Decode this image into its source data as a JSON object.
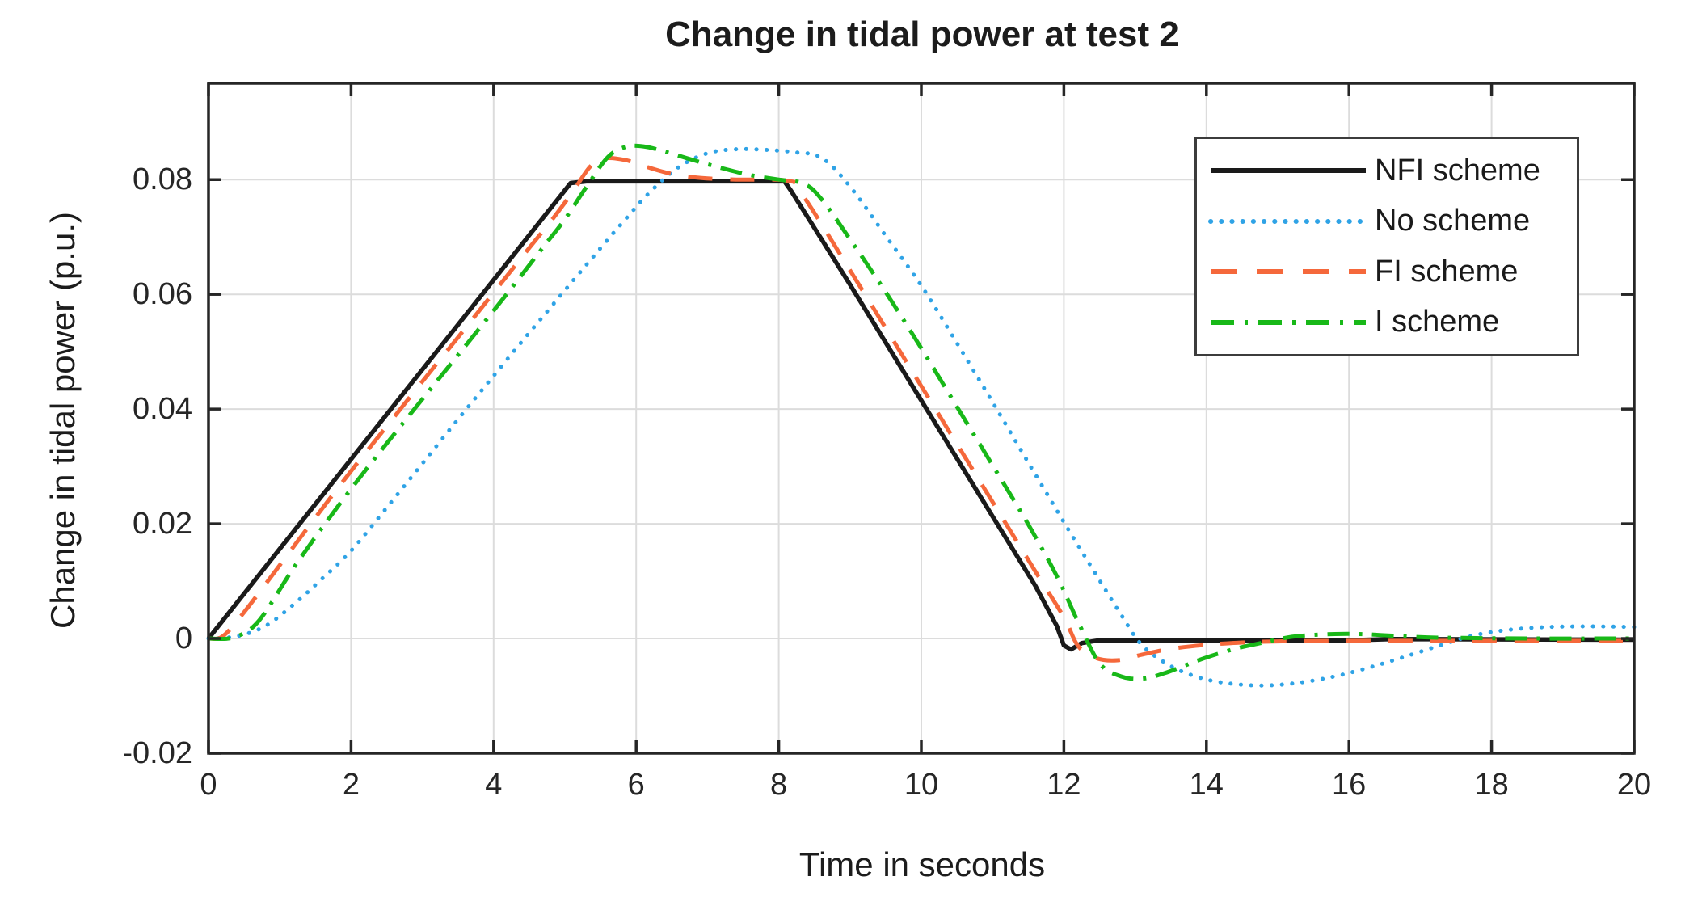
{
  "chart_data": {
    "type": "line",
    "title": "Change in tidal power at test 2",
    "xlabel": "Time in seconds",
    "ylabel": "Change in tidal power (p.u.)",
    "xlim": [
      0,
      20
    ],
    "ylim": [
      -0.02,
      0.0968
    ],
    "grid": true,
    "legend_position": "upper right",
    "xticks": [
      0,
      2,
      4,
      6,
      8,
      10,
      12,
      14,
      16,
      18,
      20
    ],
    "xtick_labels": [
      "0",
      "2",
      "4",
      "6",
      "8",
      "10",
      "12",
      "14",
      "16",
      "18",
      "20"
    ],
    "yticks": [
      -0.02,
      0,
      0.02,
      0.04,
      0.06,
      0.08
    ],
    "ytick_labels": [
      "-0.02",
      "0",
      "0.02",
      "0.04",
      "0.06",
      "0.08"
    ],
    "axis_color": "#262626",
    "grid_color": "#dcdcdc",
    "series": [
      {
        "name": "NFI scheme",
        "color": "#1a1a1a",
        "linestyle": "solid",
        "curve": "linear",
        "points": [
          [
            0,
            0
          ],
          [
            5.08,
            0.0794
          ],
          [
            5.3,
            0.0797
          ],
          [
            8.08,
            0.0797
          ],
          [
            8.18,
            0.0779
          ],
          [
            9,
            0.0617
          ],
          [
            10,
            0.0415
          ],
          [
            11,
            0.0213
          ],
          [
            11.6,
            0.0092
          ],
          [
            11.9,
            0.0022
          ],
          [
            12.0,
            -0.0012
          ],
          [
            12.1,
            -0.0019
          ],
          [
            12.25,
            -0.0008
          ],
          [
            12.5,
            -0.0003
          ],
          [
            13,
            -0.0003
          ],
          [
            16,
            -0.0003
          ],
          [
            16.6,
            -0.0001
          ],
          [
            20,
            -0.0002
          ]
        ]
      },
      {
        "name": "No scheme",
        "color": "#2fa3e6",
        "linestyle": "dotted",
        "curve": "smooth",
        "points": [
          [
            0,
            0
          ],
          [
            0.4,
            0.0004
          ],
          [
            0.8,
            0.0022
          ],
          [
            1.2,
            0.006
          ],
          [
            1.6,
            0.0105
          ],
          [
            2,
            0.0153
          ],
          [
            2.5,
            0.0228
          ],
          [
            3,
            0.0305
          ],
          [
            3.5,
            0.0382
          ],
          [
            4,
            0.0458
          ],
          [
            4.5,
            0.0533
          ],
          [
            5,
            0.0607
          ],
          [
            5.4,
            0.0666
          ],
          [
            5.8,
            0.0724
          ],
          [
            6.2,
            0.0779
          ],
          [
            6.6,
            0.0822
          ],
          [
            7,
            0.0846
          ],
          [
            7.4,
            0.0853
          ],
          [
            7.8,
            0.0852
          ],
          [
            8.2,
            0.0848
          ],
          [
            8.6,
            0.0838
          ],
          [
            9,
            0.0788
          ],
          [
            9.5,
            0.0702
          ],
          [
            10,
            0.0615
          ],
          [
            10.5,
            0.0515
          ],
          [
            11,
            0.0412
          ],
          [
            11.5,
            0.0307
          ],
          [
            12,
            0.0203
          ],
          [
            12.4,
            0.0122
          ],
          [
            12.8,
            0.0042
          ],
          [
            13.1,
            -0.0012
          ],
          [
            13.5,
            -0.0048
          ],
          [
            13.9,
            -0.0068
          ],
          [
            14.3,
            -0.0078
          ],
          [
            14.8,
            -0.0082
          ],
          [
            15.3,
            -0.0077
          ],
          [
            15.8,
            -0.0066
          ],
          [
            16.3,
            -0.005
          ],
          [
            16.8,
            -0.0031
          ],
          [
            17.3,
            -0.0011
          ],
          [
            17.7,
            0.0004
          ],
          [
            18.1,
            0.0013
          ],
          [
            18.6,
            0.0019
          ],
          [
            19.1,
            0.0021
          ],
          [
            19.6,
            0.0021
          ],
          [
            20,
            0.002
          ]
        ]
      },
      {
        "name": "FI scheme",
        "color": "#f5683b",
        "linestyle": "dashed",
        "curve": "smooth",
        "points": [
          [
            0,
            0
          ],
          [
            0.2,
            0.0004
          ],
          [
            0.5,
            0.0046
          ],
          [
            1,
            0.0128
          ],
          [
            1.5,
            0.0211
          ],
          [
            2,
            0.0292
          ],
          [
            2.5,
            0.037
          ],
          [
            3,
            0.0448
          ],
          [
            3.5,
            0.0525
          ],
          [
            4,
            0.0603
          ],
          [
            4.5,
            0.0681
          ],
          [
            4.8,
            0.0727
          ],
          [
            5.1,
            0.0777
          ],
          [
            5.35,
            0.0822
          ],
          [
            5.55,
            0.0837
          ],
          [
            5.85,
            0.0834
          ],
          [
            6.15,
            0.0822
          ],
          [
            6.5,
            0.081
          ],
          [
            6.9,
            0.0803
          ],
          [
            7.4,
            0.08
          ],
          [
            8.12,
            0.0798
          ],
          [
            8.32,
            0.0776
          ],
          [
            9,
            0.0642
          ],
          [
            10,
            0.044
          ],
          [
            11,
            0.0238
          ],
          [
            11.6,
            0.0117
          ],
          [
            12,
            0.0037
          ],
          [
            12.2,
            -0.0013
          ],
          [
            12.45,
            -0.0034
          ],
          [
            12.75,
            -0.0038
          ],
          [
            13.1,
            -0.0028
          ],
          [
            13.5,
            -0.0018
          ],
          [
            14,
            -0.0011
          ],
          [
            14.5,
            -0.0007
          ],
          [
            15,
            -0.0005
          ],
          [
            16,
            -0.0004
          ],
          [
            18,
            -0.0004
          ],
          [
            20,
            -0.0004
          ]
        ]
      },
      {
        "name": "I scheme",
        "color": "#18b818",
        "linestyle": "dashdot",
        "curve": "smooth",
        "points": [
          [
            0,
            0
          ],
          [
            0.35,
            0.0002
          ],
          [
            0.7,
            0.003
          ],
          [
            1.2,
            0.0124
          ],
          [
            1.7,
            0.0211
          ],
          [
            2.2,
            0.0293
          ],
          [
            2.7,
            0.0371
          ],
          [
            3.2,
            0.0448
          ],
          [
            3.7,
            0.0525
          ],
          [
            4.2,
            0.0603
          ],
          [
            4.7,
            0.0683
          ],
          [
            5,
            0.0731
          ],
          [
            5.3,
            0.0787
          ],
          [
            5.6,
            0.0839
          ],
          [
            5.85,
            0.0857
          ],
          [
            6.1,
            0.0858
          ],
          [
            6.4,
            0.0849
          ],
          [
            6.8,
            0.0834
          ],
          [
            7.2,
            0.082
          ],
          [
            7.6,
            0.0808
          ],
          [
            8,
            0.08
          ],
          [
            8.35,
            0.0793
          ],
          [
            8.6,
            0.0766
          ],
          [
            9,
            0.0696
          ],
          [
            9.5,
            0.0604
          ],
          [
            10,
            0.0506
          ],
          [
            10.5,
            0.0404
          ],
          [
            11,
            0.0302
          ],
          [
            11.5,
            0.0199
          ],
          [
            11.9,
            0.0109
          ],
          [
            12.2,
            0.0029
          ],
          [
            12.5,
            -0.0043
          ],
          [
            12.8,
            -0.0066
          ],
          [
            13.1,
            -0.007
          ],
          [
            13.4,
            -0.0061
          ],
          [
            13.7,
            -0.0047
          ],
          [
            14,
            -0.0033
          ],
          [
            14.4,
            -0.0018
          ],
          [
            14.8,
            -0.0007
          ],
          [
            15.2,
            0.0003
          ],
          [
            15.6,
            0.0007
          ],
          [
            16.1,
            0.0008
          ],
          [
            16.6,
            0.0005
          ],
          [
            17.1,
            0.0002
          ],
          [
            17.6,
            0.0001
          ],
          [
            18.5,
            0
          ],
          [
            20,
            0
          ]
        ]
      }
    ]
  }
}
